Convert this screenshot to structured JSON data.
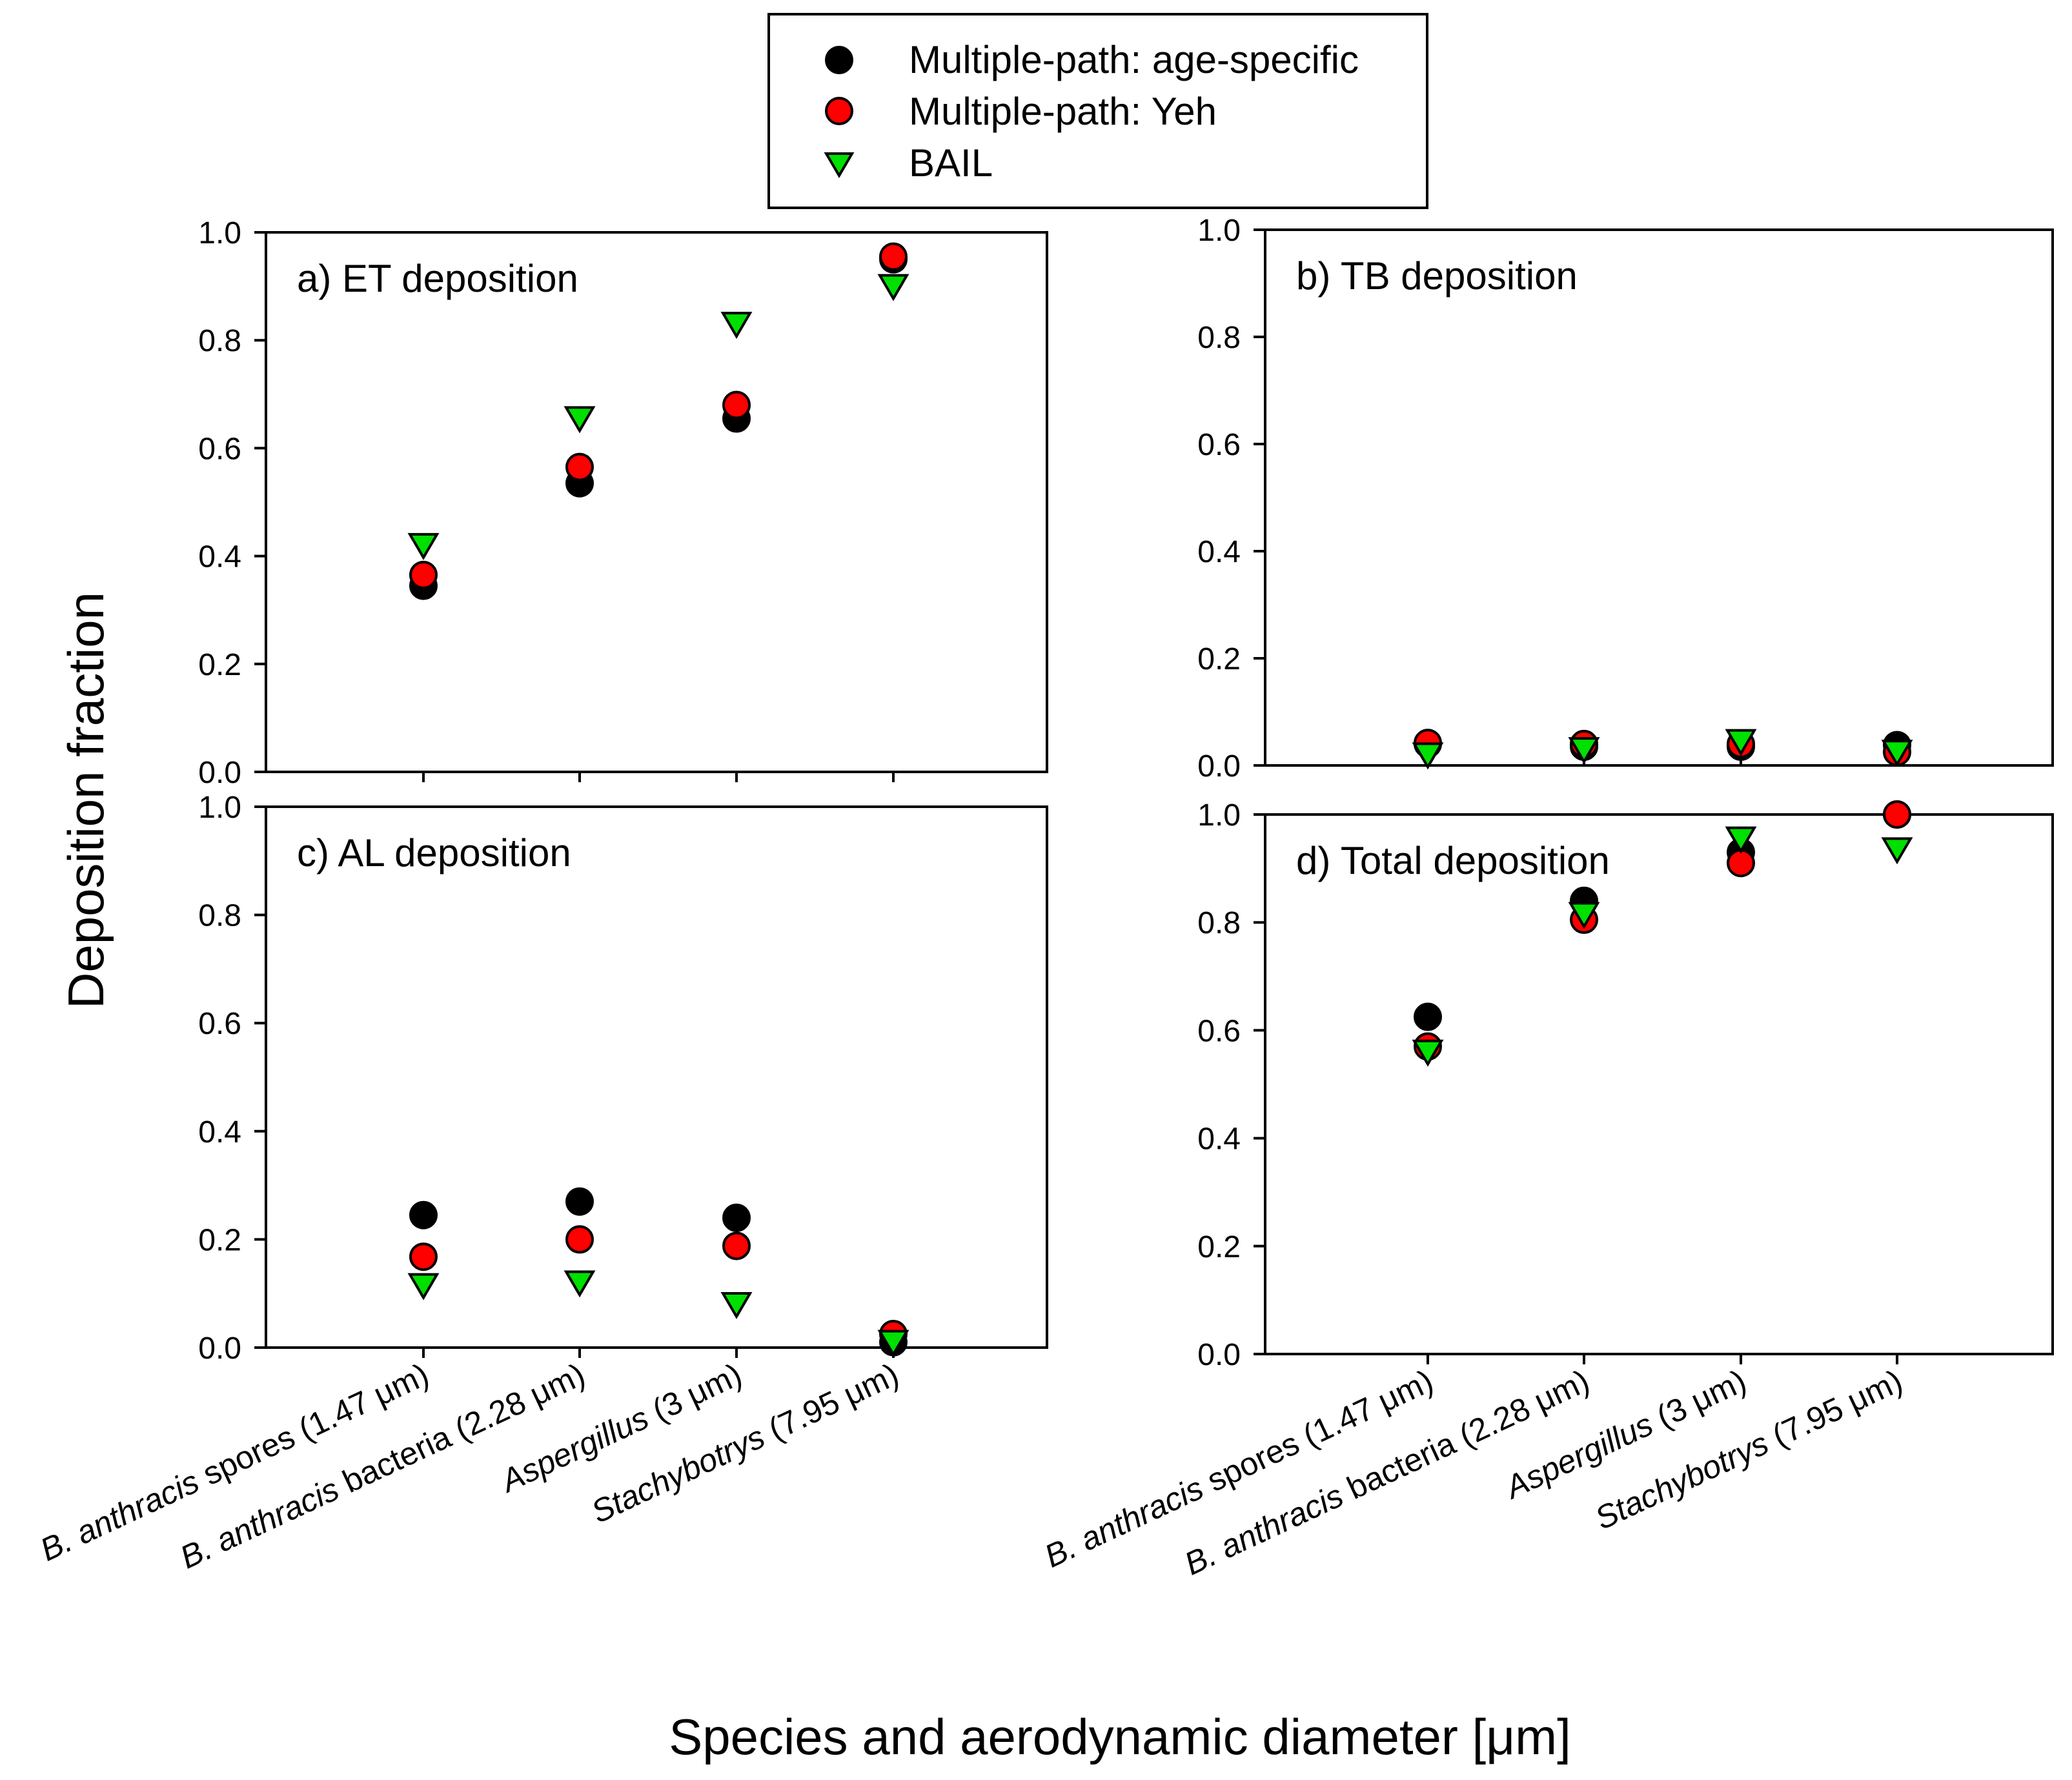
{
  "chart_data": {
    "type": "scatter",
    "ylabel": "Deposition fraction",
    "xlabel": "Species and aerodynamic diameter [μm]",
    "categories": [
      {
        "name": "B. anthracis",
        "rest": " spores (1.47 μm)"
      },
      {
        "name": "B. anthracis",
        "rest": " bacteria (2.28 μm)"
      },
      {
        "name": "Aspergillus",
        "rest": " (3 μm)"
      },
      {
        "name": "Stachybotrys",
        "rest": " (7.95 μm)"
      }
    ],
    "ylim": [
      0,
      1
    ],
    "yticks": [
      "0.0",
      "0.2",
      "0.4",
      "0.6",
      "0.8",
      "1.0"
    ],
    "legend": {
      "position": "top-center",
      "entries": [
        {
          "name": "Multiple-path: age-specific",
          "color": "#000000",
          "marker": "circle"
        },
        {
          "name": "Multiple-path: Yeh",
          "color": "#ff0000",
          "marker": "circle"
        },
        {
          "name": "BAIL",
          "color": "#00e000",
          "marker": "triangle-down"
        }
      ]
    },
    "panels": [
      {
        "id": "a",
        "title": "a) ET deposition",
        "series": [
          {
            "name": "Multiple-path: age-specific",
            "values": [
              0.345,
              0.535,
              0.655,
              0.95
            ]
          },
          {
            "name": "Multiple-path: Yeh",
            "values": [
              0.365,
              0.565,
              0.68,
              0.955
            ]
          },
          {
            "name": "BAIL",
            "values": [
              0.42,
              0.655,
              0.83,
              0.9
            ]
          }
        ]
      },
      {
        "id": "b",
        "title": "b) TB deposition",
        "series": [
          {
            "name": "Multiple-path: age-specific",
            "values": [
              0.04,
              0.035,
              0.035,
              0.038
            ]
          },
          {
            "name": "Multiple-path: Yeh",
            "values": [
              0.042,
              0.04,
              0.04,
              0.025
            ]
          },
          {
            "name": "BAIL",
            "values": [
              0.02,
              0.03,
              0.045,
              0.025
            ]
          }
        ]
      },
      {
        "id": "c",
        "title": "c) AL deposition",
        "series": [
          {
            "name": "Multiple-path: age-specific",
            "values": [
              0.245,
              0.27,
              0.24,
              0.01
            ]
          },
          {
            "name": "Multiple-path: Yeh",
            "values": [
              0.168,
              0.2,
              0.188,
              0.025
            ]
          },
          {
            "name": "BAIL",
            "values": [
              0.115,
              0.12,
              0.08,
              0.01
            ]
          }
        ]
      },
      {
        "id": "d",
        "title": "d) Total deposition",
        "series": [
          {
            "name": "Multiple-path: age-specific",
            "values": [
              0.625,
              0.84,
              0.93,
              1.0
            ]
          },
          {
            "name": "Multiple-path: Yeh",
            "values": [
              0.57,
              0.805,
              0.91,
              1.0
            ]
          },
          {
            "name": "BAIL",
            "values": [
              0.56,
              0.815,
              0.955,
              0.935
            ]
          }
        ]
      }
    ]
  }
}
